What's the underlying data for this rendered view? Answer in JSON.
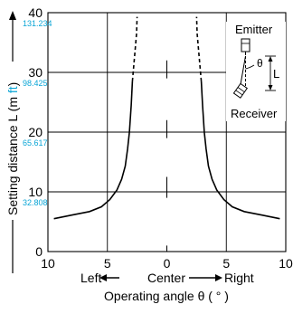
{
  "chart_data": {
    "type": "line",
    "ylabel_main": "Setting distance L (m ",
    "ylabel_unit": "ft",
    "ylabel_close": ")",
    "xlabel": "Operating angle θ ( ° )",
    "direction": {
      "left": "Left",
      "center": "Center",
      "right": "Right"
    },
    "x_ticks": [
      "10",
      "5",
      "0",
      "5",
      "10"
    ],
    "x_tick_values": [
      -10,
      -5,
      0,
      5,
      10
    ],
    "y_ticks": [
      "0",
      "10",
      "20",
      "30",
      "40"
    ],
    "y_tick_values": [
      0,
      10,
      20,
      30,
      40
    ],
    "y_ft_ticks": [
      {
        "m": 10,
        "label": "32.808"
      },
      {
        "m": 20,
        "label": "65.617"
      },
      {
        "m": 30,
        "label": "98.425"
      },
      {
        "m": 40,
        "label": "131.234"
      }
    ],
    "xlim": [
      -10,
      10
    ],
    "ylim": [
      0,
      40
    ],
    "grid": true,
    "series": [
      {
        "side": "left",
        "solid": [
          {
            "x": -9.5,
            "y": 5.5
          },
          {
            "x": -8.0,
            "y": 6.1
          },
          {
            "x": -6.5,
            "y": 6.7
          },
          {
            "x": -5.5,
            "y": 7.5
          },
          {
            "x": -4.8,
            "y": 8.7
          },
          {
            "x": -4.2,
            "y": 10.3
          },
          {
            "x": -3.8,
            "y": 12.1
          },
          {
            "x": -3.5,
            "y": 14.3
          },
          {
            "x": -3.3,
            "y": 17.2
          },
          {
            "x": -3.15,
            "y": 20.0
          },
          {
            "x": -3.0,
            "y": 24.5
          },
          {
            "x": -2.9,
            "y": 28.5
          }
        ],
        "dashed": [
          {
            "x": -2.9,
            "y": 28.5
          },
          {
            "x": -2.7,
            "y": 33.0
          },
          {
            "x": -2.55,
            "y": 36.5
          },
          {
            "x": -2.5,
            "y": 39.3
          }
        ]
      },
      {
        "side": "right",
        "solid": [
          {
            "x": 9.5,
            "y": 5.5
          },
          {
            "x": 8.0,
            "y": 6.1
          },
          {
            "x": 6.5,
            "y": 6.7
          },
          {
            "x": 5.5,
            "y": 7.5
          },
          {
            "x": 4.8,
            "y": 8.7
          },
          {
            "x": 4.2,
            "y": 10.3
          },
          {
            "x": 3.8,
            "y": 12.1
          },
          {
            "x": 3.5,
            "y": 14.3
          },
          {
            "x": 3.3,
            "y": 17.2
          },
          {
            "x": 3.15,
            "y": 20.0
          },
          {
            "x": 3.0,
            "y": 24.5
          },
          {
            "x": 2.9,
            "y": 28.5
          }
        ],
        "dashed": [
          {
            "x": 2.9,
            "y": 28.5
          },
          {
            "x": 2.7,
            "y": 33.0
          },
          {
            "x": 2.55,
            "y": 36.5
          },
          {
            "x": 2.5,
            "y": 39.3
          }
        ]
      }
    ],
    "inset": {
      "emitter": "Emitter",
      "receiver": "Receiver",
      "theta": "θ",
      "distance": "L"
    },
    "colors": {
      "line": "#000000",
      "grid": "#000000",
      "ft_labels": "#0aa5d6"
    }
  }
}
